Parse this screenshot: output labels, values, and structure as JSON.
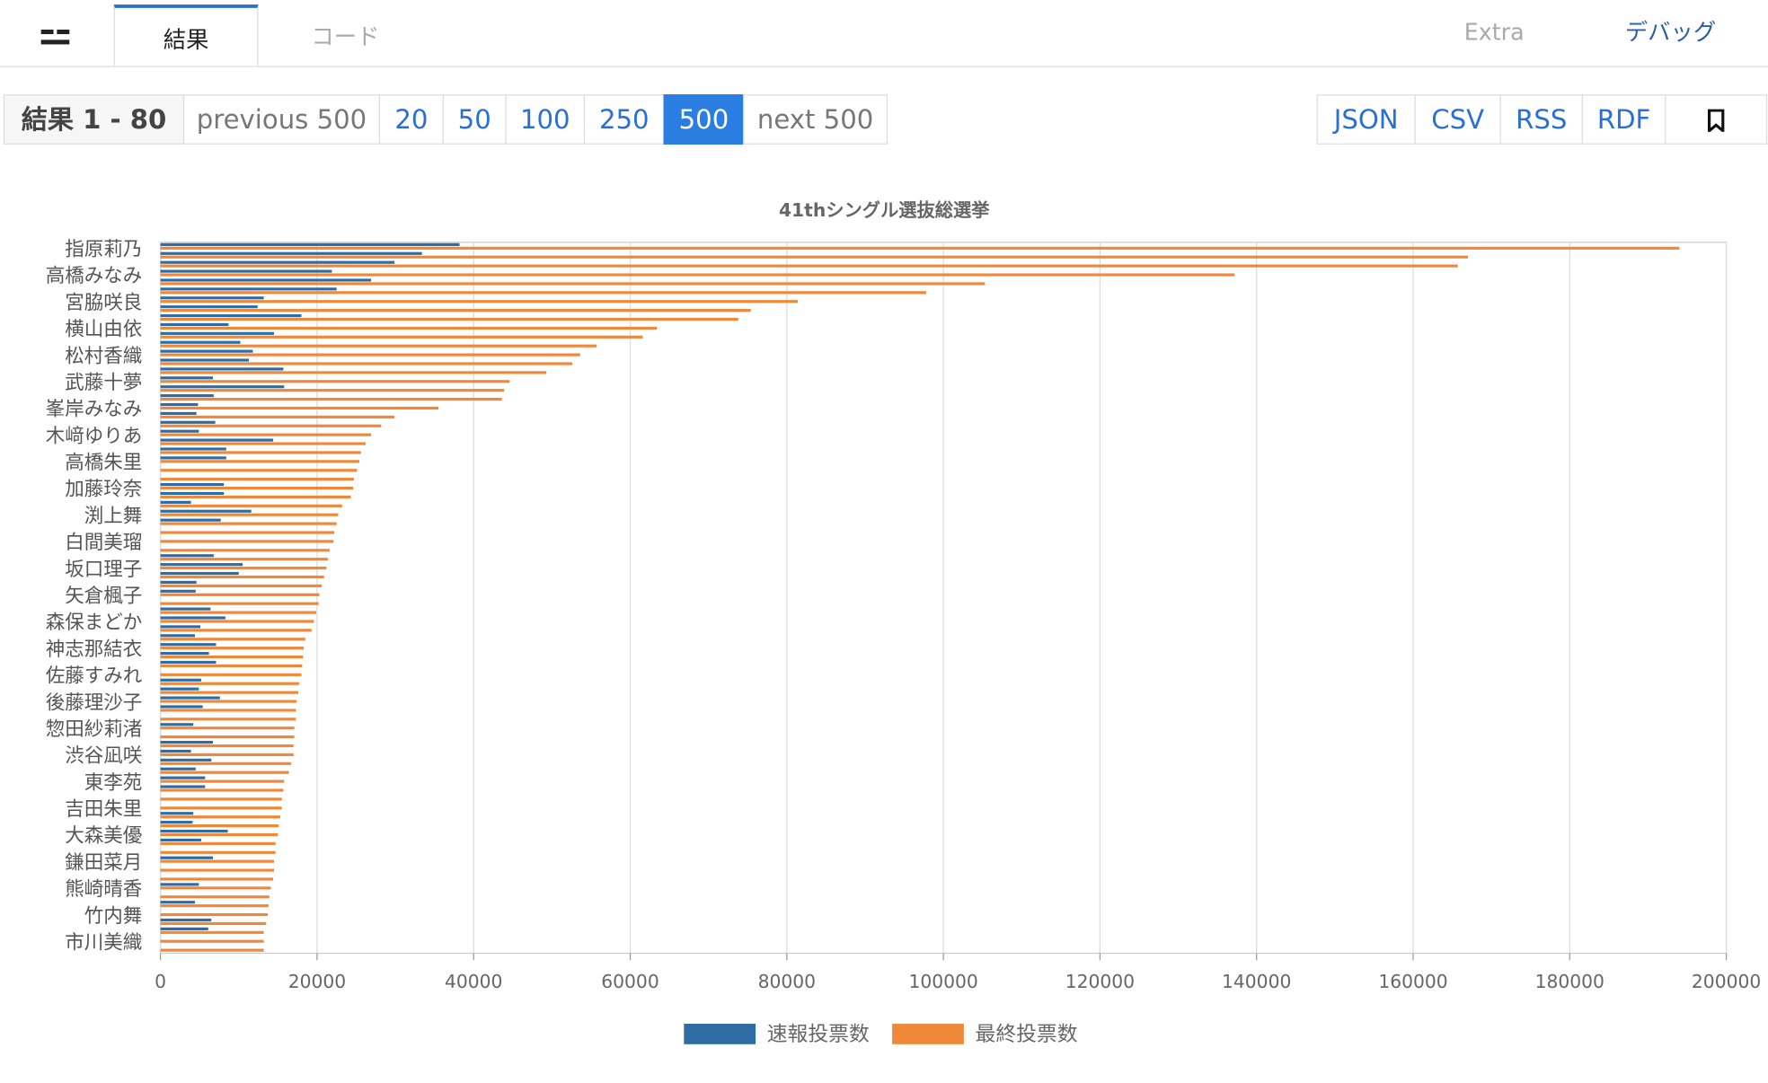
{
  "nav": {
    "tabs": [
      "結果",
      "コード"
    ],
    "right_tabs": [
      "Extra",
      "デバッグ"
    ]
  },
  "pagination": {
    "range": "結果 1 - 80",
    "previous": "previous 500",
    "sizes": [
      20,
      50,
      100,
      250,
      500
    ],
    "active": 500,
    "next": "next 500"
  },
  "exports": [
    "JSON",
    "CSV",
    "RSS",
    "RDF"
  ],
  "chart_data": {
    "type": "hbar",
    "title": "41thシングル選抜総選挙",
    "categories": [
      "指原莉乃",
      null,
      null,
      "高橋みなみ",
      null,
      null,
      "宮脇咲良",
      null,
      null,
      "横山由依",
      null,
      null,
      "松村香織",
      null,
      null,
      "武藤十夢",
      null,
      null,
      "峯岸みなみ",
      null,
      null,
      "木﨑ゆりあ",
      null,
      null,
      "高橋朱里",
      null,
      null,
      "加藤玲奈",
      null,
      null,
      "渕上舞",
      null,
      null,
      "白間美瑠",
      null,
      null,
      "坂口理子",
      null,
      null,
      "矢倉楓子",
      null,
      null,
      "森保まどか",
      null,
      null,
      "神志那結衣",
      null,
      null,
      "佐藤すみれ",
      null,
      null,
      "後藤理沙子",
      null,
      null,
      "惣田紗莉渚",
      null,
      null,
      "渋谷凪咲",
      null,
      null,
      "東李苑",
      null,
      null,
      "吉田朱里",
      null,
      null,
      "大森美優",
      null,
      null,
      "鎌田菜月",
      null,
      null,
      "熊崎晴香",
      null,
      null,
      "竹内舞",
      null,
      null,
      "市川美織",
      null
    ],
    "series": [
      {
        "name": "速報投票数",
        "color": "#2e6da4",
        "values": [
          38200,
          33400,
          29900,
          21900,
          26900,
          22500,
          13200,
          12400,
          18000,
          8700,
          14500,
          10200,
          11800,
          11300,
          15700,
          6700,
          15800,
          6800,
          4800,
          4600,
          7000,
          4900,
          14400,
          8400,
          8400,
          null,
          null,
          8100,
          8100,
          3900,
          11600,
          7700,
          null,
          null,
          null,
          6800,
          10500,
          10000,
          4600,
          4500,
          null,
          6400,
          8300,
          5100,
          4400,
          7100,
          6200,
          7100,
          null,
          5200,
          4900,
          7600,
          5400,
          null,
          4200,
          null,
          6700,
          3900,
          6500,
          4500,
          5700,
          5700,
          null,
          null,
          4200,
          4100,
          8600,
          5200,
          null,
          6700,
          null,
          null,
          4900,
          null,
          4400,
          null,
          6500,
          6100,
          null,
          null
        ]
      },
      {
        "name": "最終投票数",
        "color": "#f0883a",
        "values": [
          194000,
          167000,
          165700,
          137200,
          105300,
          97800,
          81400,
          75400,
          73800,
          63400,
          61600,
          55700,
          53600,
          52600,
          49300,
          44600,
          43900,
          43600,
          35500,
          29900,
          28200,
          26900,
          26200,
          25600,
          25400,
          25100,
          24700,
          24600,
          24300,
          23200,
          22700,
          22500,
          22200,
          22100,
          21600,
          21400,
          21200,
          20900,
          20600,
          20300,
          20200,
          19900,
          19600,
          19300,
          18500,
          18300,
          18200,
          18100,
          18000,
          17700,
          17600,
          17400,
          17300,
          17300,
          17100,
          17100,
          17000,
          17000,
          16700,
          16400,
          15800,
          15700,
          15500,
          15500,
          15300,
          15100,
          15000,
          14700,
          14700,
          14500,
          14500,
          14400,
          14100,
          13900,
          13800,
          13700,
          13500,
          13200,
          13200,
          13200
        ]
      }
    ],
    "xlim": [
      0,
      200000
    ],
    "xticks": [
      0,
      20000,
      40000,
      60000,
      80000,
      100000,
      120000,
      140000,
      160000,
      180000,
      200000
    ],
    "grid": true,
    "legend": "bottom"
  }
}
